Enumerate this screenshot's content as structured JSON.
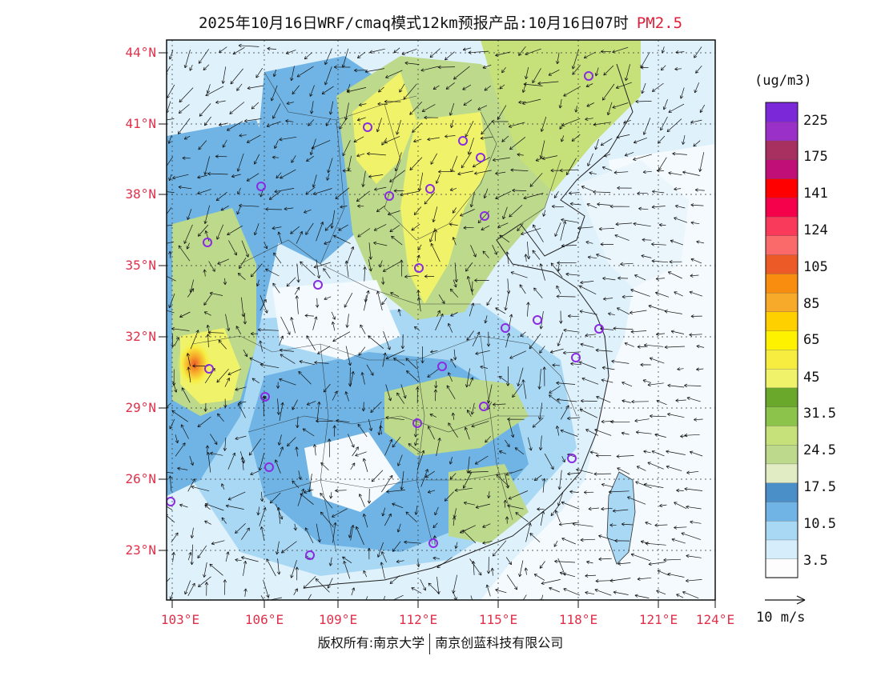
{
  "header": {
    "title": "2025年10月16日WRF/cmaq模式12km预报产品:10月16日07时",
    "species": "PM2.5"
  },
  "map": {
    "lat_labels": [
      "44°N",
      "41°N",
      "38°N",
      "35°N",
      "32°N",
      "29°N",
      "26°N",
      "23°N"
    ],
    "lon_labels": [
      "103°E",
      "106°E",
      "109°E",
      "112°E",
      "115°E",
      "118°E",
      "121°E",
      "124°E"
    ]
  },
  "colorbar": {
    "unit": "(ug/m3)",
    "colors": [
      "#fdfdfd",
      "#d6eefb",
      "#a9d8f5",
      "#6fb4e4",
      "#4a8fc8",
      "#e2ecc4",
      "#bcd98c",
      "#c6e07a",
      "#8cc34a",
      "#6aa82c",
      "#f0f36a",
      "#f7ec40",
      "#fff200",
      "#ffd000",
      "#f7a92a",
      "#f98d10",
      "#ec5a28",
      "#fa6a6a",
      "#fa3a5a",
      "#f5004a",
      "#ff0000",
      "#c01078",
      "#a83060",
      "#9a30c8",
      "#7a28d8"
    ],
    "labels": [
      "3.5",
      "10.5",
      "17.5",
      "24.5",
      "31.5",
      "45",
      "65",
      "85",
      "105",
      "124",
      "141",
      "175",
      "225"
    ]
  },
  "wind_reference": {
    "label": "10 m/s"
  },
  "footer": {
    "copyright_left": "版权所有:南京大学",
    "copyright_right": "南京创蓝科技有限公司"
  }
}
